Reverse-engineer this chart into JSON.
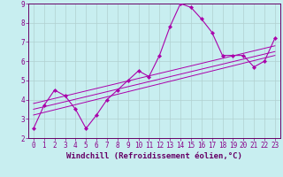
{
  "xlabel": "Windchill (Refroidissement éolien,°C)",
  "bg_color": "#c8eef0",
  "grid_color": "#b0d0d0",
  "line_color": "#aa00aa",
  "spine_color": "#660066",
  "xlim": [
    -0.5,
    23.5
  ],
  "ylim": [
    2,
    9
  ],
  "xticks": [
    0,
    1,
    2,
    3,
    4,
    5,
    6,
    7,
    8,
    9,
    10,
    11,
    12,
    13,
    14,
    15,
    16,
    17,
    18,
    19,
    20,
    21,
    22,
    23
  ],
  "yticks": [
    2,
    3,
    4,
    5,
    6,
    7,
    8,
    9
  ],
  "series_x": [
    0,
    1,
    2,
    3,
    4,
    5,
    6,
    7,
    8,
    9,
    10,
    11,
    12,
    13,
    14,
    15,
    16,
    17,
    18,
    19,
    20,
    21,
    22,
    23
  ],
  "series_y": [
    2.5,
    3.7,
    4.5,
    4.2,
    3.5,
    2.5,
    3.2,
    4.0,
    4.5,
    5.0,
    5.5,
    5.2,
    6.3,
    7.8,
    9.0,
    8.8,
    8.2,
    7.5,
    6.3,
    6.3,
    6.3,
    5.7,
    6.0,
    7.2
  ],
  "trend_lines": [
    {
      "x": [
        0,
        23
      ],
      "y": [
        3.2,
        6.3
      ]
    },
    {
      "x": [
        0,
        23
      ],
      "y": [
        3.5,
        6.5
      ]
    },
    {
      "x": [
        0,
        23
      ],
      "y": [
        3.8,
        6.8
      ]
    }
  ],
  "tick_fontsize": 5.5,
  "label_fontsize": 6.5,
  "tick_color": "#880088",
  "label_color": "#660066"
}
